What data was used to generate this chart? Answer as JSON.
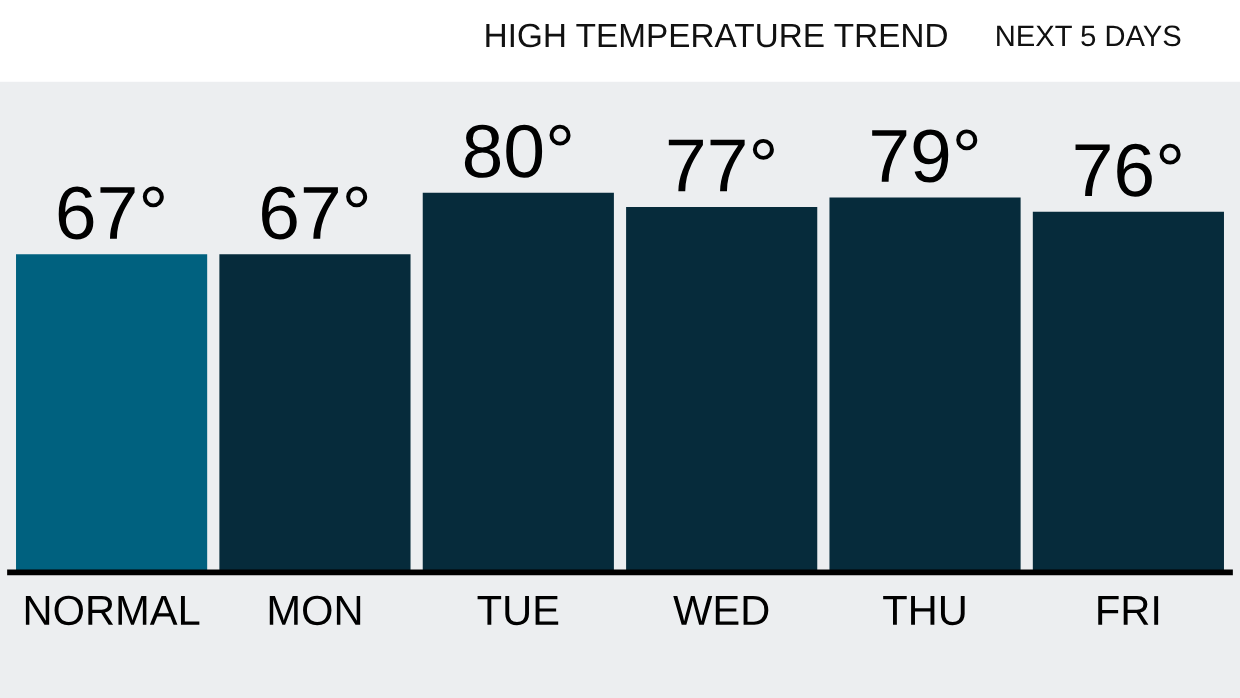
{
  "chart_data": {
    "type": "bar",
    "title": "HIGH TEMPERATURE TREND",
    "subtitle": "NEXT 5 DAYS",
    "categories": [
      "NORMAL",
      "MON",
      "TUE",
      "WED",
      "THU",
      "FRI"
    ],
    "values": [
      67,
      67,
      80,
      77,
      79,
      76
    ],
    "colors": [
      "#00617f",
      "#062b3b",
      "#062b3b",
      "#062b3b",
      "#062b3b",
      "#062b3b"
    ],
    "value_labels": [
      "67°",
      "67°",
      "80°",
      "77°",
      "79°",
      "76°"
    ],
    "grid": false,
    "legend": false
  }
}
